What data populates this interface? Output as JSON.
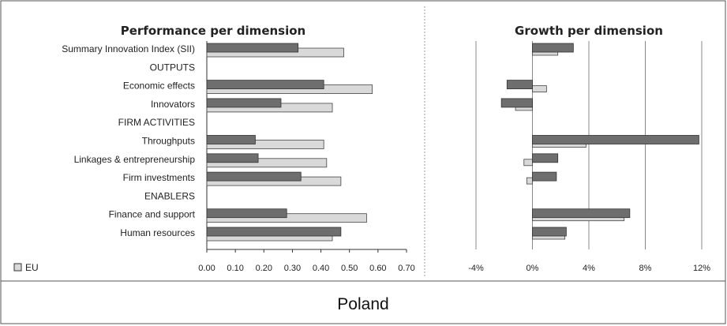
{
  "country": "Poland",
  "legend": {
    "label": "EU"
  },
  "colors": {
    "country": "#6e6e6e",
    "eu": "#d9d9d9",
    "frame": "#555555",
    "grid": "#888888"
  },
  "chart_data": [
    {
      "type": "bar",
      "orientation": "horizontal",
      "title": "Performance per dimension",
      "categories": [
        "Summary Innovation Index (SII)",
        "OUTPUTS",
        "Economic effects",
        "Innovators",
        "FIRM ACTIVITIES",
        "Throughputs",
        "Linkages & entrepreneurship",
        "Firm investments",
        "ENABLERS",
        "Finance and support",
        "Human resources"
      ],
      "series": [
        {
          "values": [
            0.32,
            null,
            0.41,
            0.26,
            null,
            0.17,
            0.18,
            0.33,
            null,
            0.28,
            0.47
          ]
        },
        {
          "name": "EU",
          "values": [
            0.48,
            null,
            0.58,
            0.44,
            null,
            0.41,
            0.42,
            0.47,
            null,
            0.56,
            0.44
          ]
        }
      ],
      "xlim": [
        0,
        0.7
      ],
      "xticks": [
        "0.00",
        "0.10",
        "0.20",
        "0.30",
        "0.40",
        "0.50",
        "0.60",
        "0.70"
      ]
    },
    {
      "type": "bar",
      "orientation": "horizontal",
      "title": "Growth per dimension",
      "categories": [
        "Summary Innovation Index (SII)",
        "OUTPUTS",
        "Economic effects",
        "Innovators",
        "FIRM ACTIVITIES",
        "Throughputs",
        "Linkages & entrepreneurship",
        "Firm investments",
        "ENABLERS",
        "Finance and support",
        "Human resources"
      ],
      "series": [
        {
          "values": [
            2.9,
            null,
            -1.8,
            -2.2,
            null,
            11.8,
            1.8,
            1.7,
            null,
            6.9,
            2.4
          ]
        },
        {
          "name": "EU",
          "values": [
            1.8,
            null,
            1.0,
            -1.2,
            null,
            3.8,
            -0.6,
            -0.4,
            null,
            6.5,
            2.3
          ]
        }
      ],
      "xlim": [
        -4,
        12
      ],
      "xticks": [
        "-4%",
        "0%",
        "4%",
        "8%",
        "12%"
      ]
    }
  ]
}
